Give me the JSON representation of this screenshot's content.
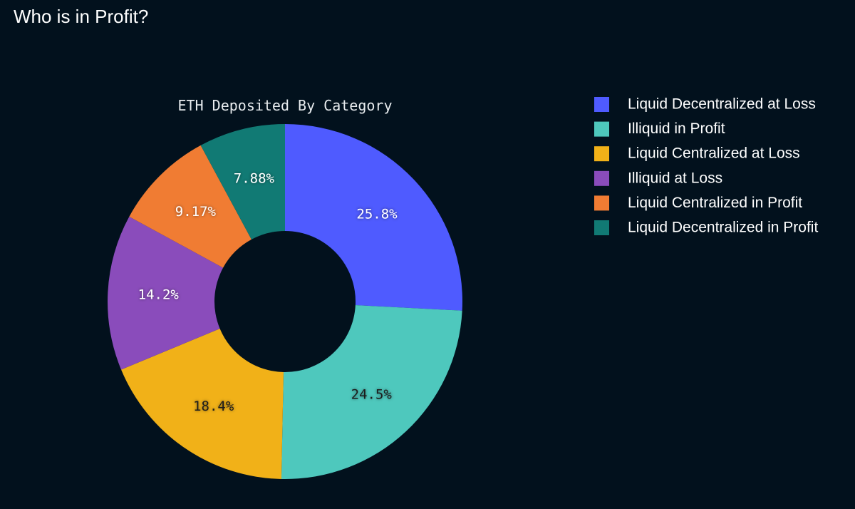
{
  "page": {
    "title": "Who is in Profit?"
  },
  "chart_data": {
    "type": "pie",
    "title": "ETH Deposited By Category",
    "donut": true,
    "legend_position": "right",
    "slices": [
      {
        "label": "Liquid Decentralized at Loss",
        "value": 25.8,
        "display": "25.8%",
        "color": "#4f5bff"
      },
      {
        "label": "Illiquid in Profit",
        "value": 24.5,
        "display": "24.5%",
        "color": "#4ec8bd"
      },
      {
        "label": "Liquid Centralized at Loss",
        "value": 18.4,
        "display": "18.4%",
        "color": "#f1b118"
      },
      {
        "label": "Illiquid at Loss",
        "value": 14.2,
        "display": "14.2%",
        "color": "#8a4cbb"
      },
      {
        "label": "Liquid Centralized in Profit",
        "value": 9.17,
        "display": "9.17%",
        "color": "#f07c33"
      },
      {
        "label": "Liquid Decentralized in Profit",
        "value": 7.88,
        "display": "7.88%",
        "color": "#117a74"
      }
    ]
  }
}
